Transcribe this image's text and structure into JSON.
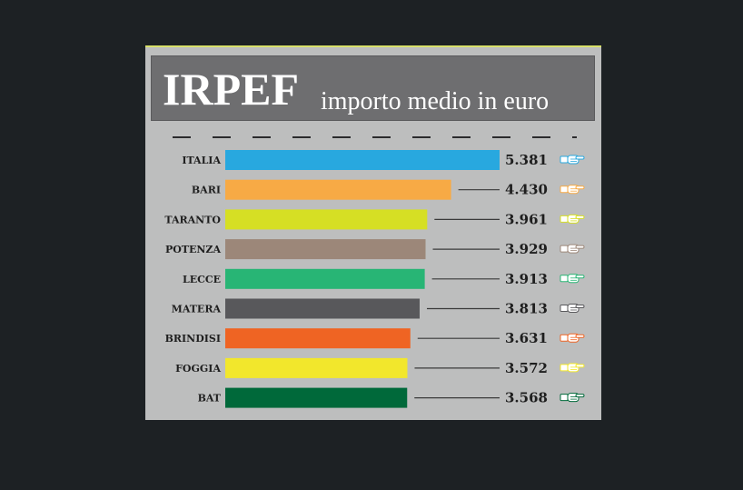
{
  "header": {
    "title": "IRPEF",
    "subtitle": "importo medio in euro"
  },
  "chart_data": {
    "type": "bar",
    "orientation": "horizontal",
    "title": "IRPEF",
    "subtitle": "importo medio in euro",
    "categories": [
      "ITALIA",
      "BARI",
      "TARANTO",
      "POTENZA",
      "LECCE",
      "MATERA",
      "BRINDISI",
      "FOGGIA",
      "BAT"
    ],
    "values": [
      5381,
      4430,
      3961,
      3929,
      3913,
      3813,
      3631,
      3572,
      3568
    ],
    "value_labels": [
      "5.381",
      "4.430",
      "3.961",
      "3.929",
      "3.913",
      "3.813",
      "3.631",
      "3.572",
      "3.568"
    ],
    "colors": [
      "#28a8df",
      "#f7aa45",
      "#d6df24",
      "#9c8779",
      "#28b575",
      "#58585b",
      "#ef6423",
      "#f2e72c",
      "#00693a"
    ],
    "icon": "pointing-hand-icon",
    "xlim": [
      0,
      5381
    ],
    "grid": false,
    "legend": "none"
  }
}
